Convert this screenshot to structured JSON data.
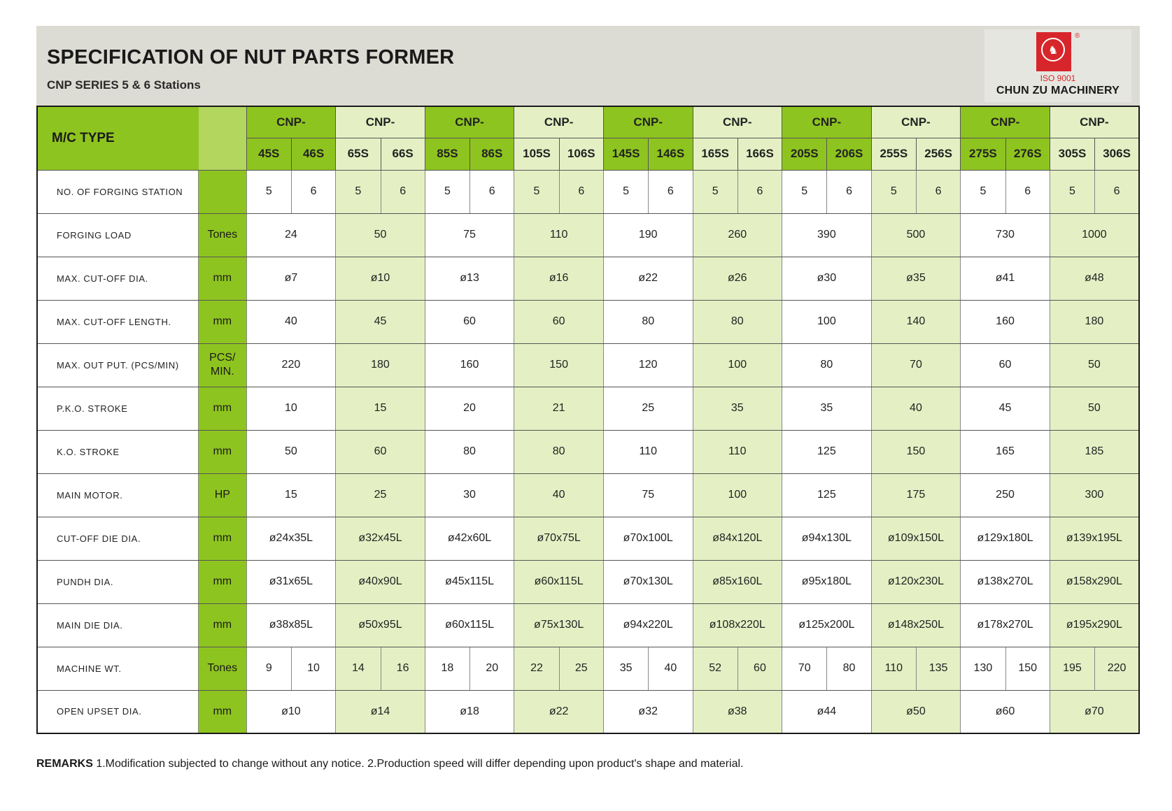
{
  "header": {
    "title": "SPECIFICATION OF NUT PARTS FORMER",
    "subtitle": "CNP SERIES 5 & 6 Stations"
  },
  "logo": {
    "iso": "ISO 9001",
    "company": "CHUN ZU MACHINERY",
    "badge_text": "LION",
    "registered": "®"
  },
  "table": {
    "type_label": "M/C TYPE",
    "groups": [
      {
        "prefix": "CNP-",
        "models": [
          "45S",
          "46S"
        ]
      },
      {
        "prefix": "CNP-",
        "models": [
          "65S",
          "66S"
        ]
      },
      {
        "prefix": "CNP-",
        "models": [
          "85S",
          "86S"
        ]
      },
      {
        "prefix": "CNP-",
        "models": [
          "105S",
          "106S"
        ]
      },
      {
        "prefix": "CNP-",
        "models": [
          "145S",
          "146S"
        ]
      },
      {
        "prefix": "CNP-",
        "models": [
          "165S",
          "166S"
        ]
      },
      {
        "prefix": "CNP-",
        "models": [
          "205S",
          "206S"
        ]
      },
      {
        "prefix": "CNP-",
        "models": [
          "255S",
          "256S"
        ]
      },
      {
        "prefix": "CNP-",
        "models": [
          "275S",
          "276S"
        ]
      },
      {
        "prefix": "CNP-",
        "models": [
          "305S",
          "306S"
        ]
      }
    ],
    "rows": [
      {
        "label": "NO. OF FORGING STATION",
        "unit": "",
        "split": true,
        "values": [
          "5",
          "6",
          "5",
          "6",
          "5",
          "6",
          "5",
          "6",
          "5",
          "6",
          "5",
          "6",
          "5",
          "6",
          "5",
          "6",
          "5",
          "6",
          "5",
          "6"
        ]
      },
      {
        "label": "FORGING LOAD",
        "unit": "Tones",
        "split": false,
        "values": [
          "24",
          "50",
          "75",
          "110",
          "190",
          "260",
          "390",
          "500",
          "730",
          "1000"
        ]
      },
      {
        "label": "MAX. CUT-OFF DIA.",
        "unit": "mm",
        "split": false,
        "values": [
          "ø7",
          "ø10",
          "ø13",
          "ø16",
          "ø22",
          "ø26",
          "ø30",
          "ø35",
          "ø41",
          "ø48"
        ]
      },
      {
        "label": "MAX. CUT-OFF LENGTH.",
        "unit": "mm",
        "split": false,
        "values": [
          "40",
          "45",
          "60",
          "60",
          "80",
          "80",
          "100",
          "140",
          "160",
          "180"
        ]
      },
      {
        "label": "MAX. OUT PUT. (PCS/MIN)",
        "unit": "PCS/ MIN.",
        "split": false,
        "values": [
          "220",
          "180",
          "160",
          "150",
          "120",
          "100",
          "80",
          "70",
          "60",
          "50"
        ]
      },
      {
        "label": "P.K.O. STROKE",
        "unit": "mm",
        "split": false,
        "values": [
          "10",
          "15",
          "20",
          "21",
          "25",
          "35",
          "35",
          "40",
          "45",
          "50"
        ]
      },
      {
        "label": "K.O. STROKE",
        "unit": "mm",
        "split": false,
        "values": [
          "50",
          "60",
          "80",
          "80",
          "110",
          "110",
          "125",
          "150",
          "165",
          "185"
        ]
      },
      {
        "label": "MAIN MOTOR.",
        "unit": "HP",
        "split": false,
        "values": [
          "15",
          "25",
          "30",
          "40",
          "75",
          "100",
          "125",
          "175",
          "250",
          "300"
        ]
      },
      {
        "label": "CUT-OFF DIE DIA.",
        "unit": "mm",
        "split": false,
        "values": [
          "ø24x35L",
          "ø32x45L",
          "ø42x60L",
          "ø70x75L",
          "ø70x100L",
          "ø84x120L",
          "ø94x130L",
          "ø109x150L",
          "ø129x180L",
          "ø139x195L"
        ]
      },
      {
        "label": "PUNDH DIA.",
        "unit": "mm",
        "split": false,
        "values": [
          "ø31x65L",
          "ø40x90L",
          "ø45x115L",
          "ø60x115L",
          "ø70x130L",
          "ø85x160L",
          "ø95x180L",
          "ø120x230L",
          "ø138x270L",
          "ø158x290L"
        ]
      },
      {
        "label": "MAIN DIE DIA.",
        "unit": "mm",
        "split": false,
        "values": [
          "ø38x85L",
          "ø50x95L",
          "ø60x115L",
          "ø75x130L",
          "ø94x220L",
          "ø108x220L",
          "ø125x200L",
          "ø148x250L",
          "ø178x270L",
          "ø195x290L"
        ]
      },
      {
        "label": "MACHINE WT.",
        "unit": "Tones",
        "split": true,
        "values": [
          "9",
          "10",
          "14",
          "16",
          "18",
          "20",
          "22",
          "25",
          "35",
          "40",
          "52",
          "60",
          "70",
          "80",
          "110",
          "135",
          "130",
          "150",
          "195",
          "220"
        ]
      },
      {
        "label": "OPEN UPSET DIA.",
        "unit": "mm",
        "split": false,
        "values": [
          "ø10",
          "ø14",
          "ø18",
          "ø22",
          "ø32",
          "ø38",
          "ø44",
          "ø50",
          "ø60",
          "ø70"
        ]
      }
    ]
  },
  "remarks": {
    "label": "REMARKS",
    "text": " 1.Modification subjected to change without any notice. 2.Production speed will differ depending upon product's shape and material."
  }
}
